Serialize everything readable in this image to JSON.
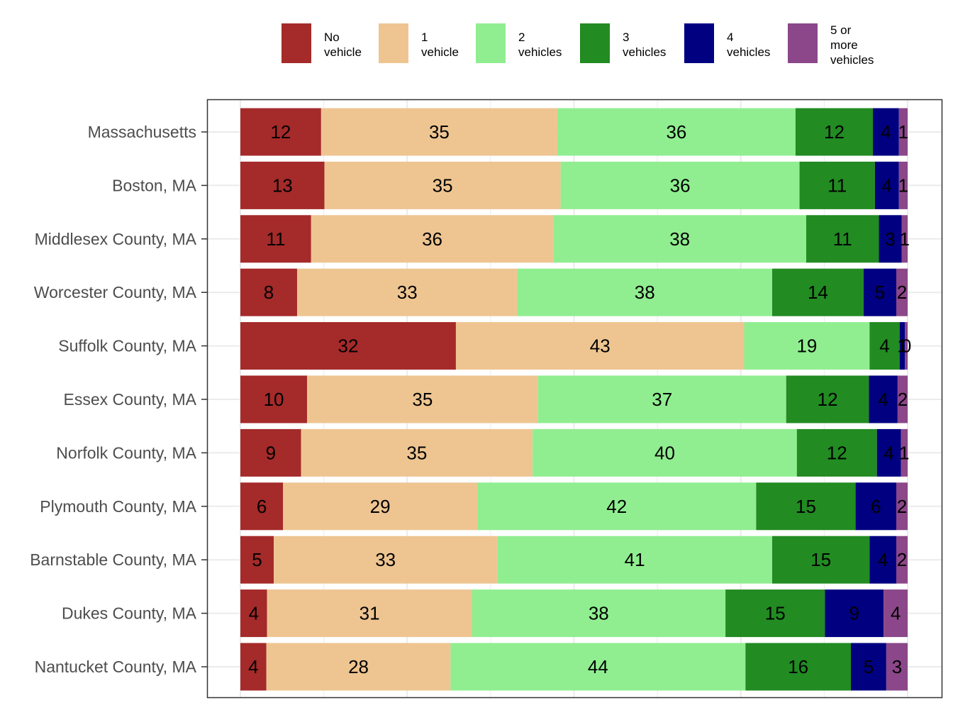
{
  "chart_data": {
    "type": "bar",
    "orientation": "horizontal",
    "stacked": true,
    "categories": [
      "Massachusetts",
      "Boston, MA",
      "Middlesex County, MA",
      "Worcester County, MA",
      "Suffolk County, MA",
      "Essex County, MA",
      "Norfolk County, MA",
      "Plymouth County, MA",
      "Barnstable County, MA",
      "Dukes County, MA",
      "Nantucket County, MA"
    ],
    "series": [
      {
        "name": "No vehicle",
        "legend_lines": [
          "No",
          "vehicle"
        ],
        "color": "#a52a2a",
        "values": [
          12,
          13,
          11,
          8,
          32,
          10,
          9,
          6,
          5,
          4,
          4
        ],
        "exact": [
          12.1,
          12.6,
          10.6,
          8.5,
          32.3,
          10.0,
          9.1,
          6.4,
          5.0,
          4.0,
          3.9
        ]
      },
      {
        "name": "1 vehicle",
        "legend_lines": [
          "1",
          "vehicle"
        ],
        "color": "#eec591",
        "values": [
          35,
          35,
          36,
          33,
          43,
          35,
          35,
          29,
          33,
          31,
          28
        ],
        "exact": [
          35.4,
          35.4,
          36.3,
          33.0,
          43.2,
          34.6,
          34.7,
          29.1,
          33.5,
          30.7,
          27.6
        ]
      },
      {
        "name": "2 vehicles",
        "legend_lines": [
          "2",
          "vehicles"
        ],
        "color": "#90ee90",
        "values": [
          36,
          36,
          38,
          38,
          19,
          37,
          40,
          42,
          41,
          38,
          44
        ],
        "exact": [
          35.7,
          35.8,
          37.9,
          38.2,
          18.8,
          37.2,
          39.6,
          41.8,
          41.2,
          38.0,
          44.2
        ]
      },
      {
        "name": "3 vehicles",
        "legend_lines": [
          "3",
          "vehicles"
        ],
        "color": "#228b22",
        "values": [
          12,
          11,
          11,
          14,
          4,
          12,
          12,
          15,
          15,
          15,
          16
        ],
        "exact": [
          11.6,
          11.3,
          10.9,
          13.7,
          4.5,
          12.4,
          12.0,
          14.9,
          14.6,
          14.9,
          15.8
        ]
      },
      {
        "name": "4 vehicles",
        "legend_lines": [
          "4",
          "vehicles"
        ],
        "color": "#000080",
        "values": [
          4,
          4,
          3,
          5,
          1,
          4,
          4,
          6,
          4,
          9,
          5
        ],
        "display_labels": [
          "4",
          "4",
          "3",
          "5",
          "1",
          "4",
          "4",
          "6",
          "4",
          "9",
          "5"
        ],
        "exact": [
          3.9,
          3.6,
          3.4,
          4.9,
          0.8,
          4.3,
          3.6,
          6.1,
          4.0,
          8.8,
          5.3
        ]
      },
      {
        "name": "5 or more vehicles",
        "legend_lines": [
          "5 or",
          "more",
          "vehicles"
        ],
        "color": "#8b4789",
        "values": [
          1,
          1,
          1,
          2,
          0,
          2,
          1,
          2,
          2,
          4,
          3
        ],
        "exact": [
          1.3,
          1.3,
          0.9,
          1.7,
          0.4,
          1.5,
          1.0,
          1.7,
          1.7,
          3.6,
          3.2
        ]
      }
    ],
    "xlim": [
      0,
      100
    ],
    "xgrid_ticks": [
      0,
      12.5,
      25,
      37.5,
      50,
      62.5,
      75,
      87.5,
      100
    ],
    "grid": true,
    "legend_position": "top",
    "title": "",
    "xlabel": "",
    "ylabel": ""
  }
}
